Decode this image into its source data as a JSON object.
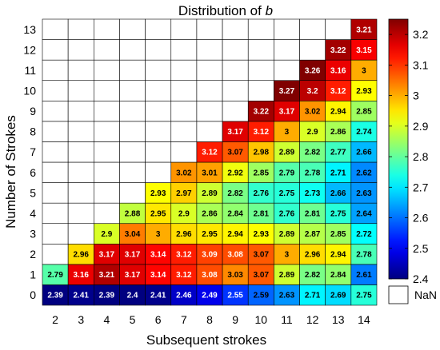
{
  "chart_data": {
    "type": "heatmap",
    "title": "Distribution of ",
    "title_symbol": "b",
    "xlabel": "Subsequent strokes",
    "ylabel": "Number of Strokes",
    "x": [
      2,
      3,
      4,
      5,
      6,
      7,
      8,
      9,
      10,
      11,
      12,
      13,
      14
    ],
    "y": [
      0,
      1,
      2,
      3,
      4,
      5,
      6,
      7,
      8,
      9,
      10,
      11,
      12,
      13
    ],
    "clim": [
      2.4,
      3.25
    ],
    "colormap": "jet",
    "colorbar_ticks": [
      "2.4",
      "2.5",
      "2.6",
      "2.7",
      "2.8",
      "2.9",
      "3",
      "3.1",
      "3.2"
    ],
    "nan_label": "NaN",
    "nan_color": "#ffffff",
    "values": [
      [
        2.39,
        2.41,
        2.39,
        2.4,
        2.41,
        2.46,
        2.49,
        2.55,
        2.59,
        2.63,
        2.71,
        2.69,
        2.75
      ],
      [
        2.79,
        3.16,
        3.21,
        3.17,
        3.14,
        3.12,
        3.08,
        3.03,
        3.07,
        2.89,
        2.82,
        2.84,
        2.61
      ],
      [
        null,
        2.96,
        3.17,
        3.17,
        3.14,
        3.12,
        3.09,
        3.08,
        3.07,
        3,
        2.96,
        2.94,
        2.78
      ],
      [
        null,
        null,
        2.9,
        3.04,
        3,
        2.96,
        2.95,
        2.94,
        2.93,
        2.89,
        2.87,
        2.85,
        2.72
      ],
      [
        null,
        null,
        null,
        2.88,
        2.95,
        2.9,
        2.86,
        2.84,
        2.81,
        2.76,
        2.81,
        2.75,
        2.64
      ],
      [
        null,
        null,
        null,
        null,
        2.93,
        2.97,
        2.89,
        2.82,
        2.76,
        2.75,
        2.73,
        2.66,
        2.63
      ],
      [
        null,
        null,
        null,
        null,
        null,
        3.02,
        3.01,
        2.92,
        2.85,
        2.79,
        2.78,
        2.71,
        2.62
      ],
      [
        null,
        null,
        null,
        null,
        null,
        null,
        3.12,
        3.07,
        2.98,
        2.89,
        2.82,
        2.77,
        2.66
      ],
      [
        null,
        null,
        null,
        null,
        null,
        null,
        null,
        3.17,
        3.12,
        3,
        2.9,
        2.86,
        2.74
      ],
      [
        null,
        null,
        null,
        null,
        null,
        null,
        null,
        null,
        3.22,
        3.17,
        3.02,
        2.94,
        2.85
      ],
      [
        null,
        null,
        null,
        null,
        null,
        null,
        null,
        null,
        null,
        3.27,
        3.2,
        3.12,
        2.93
      ],
      [
        null,
        null,
        null,
        null,
        null,
        null,
        null,
        null,
        null,
        null,
        3.26,
        3.16,
        3
      ],
      [
        null,
        null,
        null,
        null,
        null,
        null,
        null,
        null,
        null,
        null,
        null,
        3.22,
        3.15
      ],
      [
        null,
        null,
        null,
        null,
        null,
        null,
        null,
        null,
        null,
        null,
        null,
        null,
        3.21
      ]
    ]
  }
}
